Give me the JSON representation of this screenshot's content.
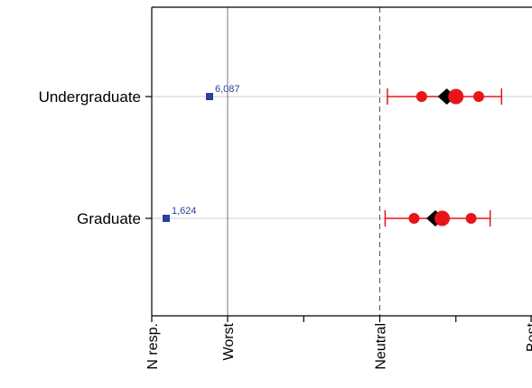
{
  "chart_data": {
    "type": "scatter",
    "title": "",
    "xlabel": "",
    "ylabel": "",
    "categories": [
      "Undergraduate",
      "Graduate"
    ],
    "x_ticks": [
      {
        "label": "N resp.",
        "value": -1
      },
      {
        "label": "Worst",
        "value": 0
      },
      {
        "label": "",
        "value": 1
      },
      {
        "label": "Neutral",
        "value": 2
      },
      {
        "label": "",
        "value": 3
      },
      {
        "label": "Best",
        "value": 4
      }
    ],
    "xlim": [
      -1,
      4
    ],
    "reference_lines": {
      "worst": 0,
      "neutral": 2
    },
    "rows": [
      {
        "category": "Undergraduate",
        "n_responses": "6,087",
        "whisker_low": 2.1,
        "whisker_high": 3.6,
        "points": [
          2.55,
          3.3
        ],
        "median": 3.0,
        "mean": 2.88
      },
      {
        "category": "Graduate",
        "n_responses": "1,624",
        "whisker_low": 2.07,
        "whisker_high": 3.45,
        "points": [
          2.45,
          3.2
        ],
        "median": 2.82,
        "mean": 2.73
      }
    ],
    "colors": {
      "stats": "#e8141a",
      "diamond": "#000000",
      "n_marker": "#2a3f9e",
      "axes": "#000000",
      "worst_line": "#777777",
      "neutral_line": "#555555",
      "gridline": "#cccccc"
    }
  }
}
